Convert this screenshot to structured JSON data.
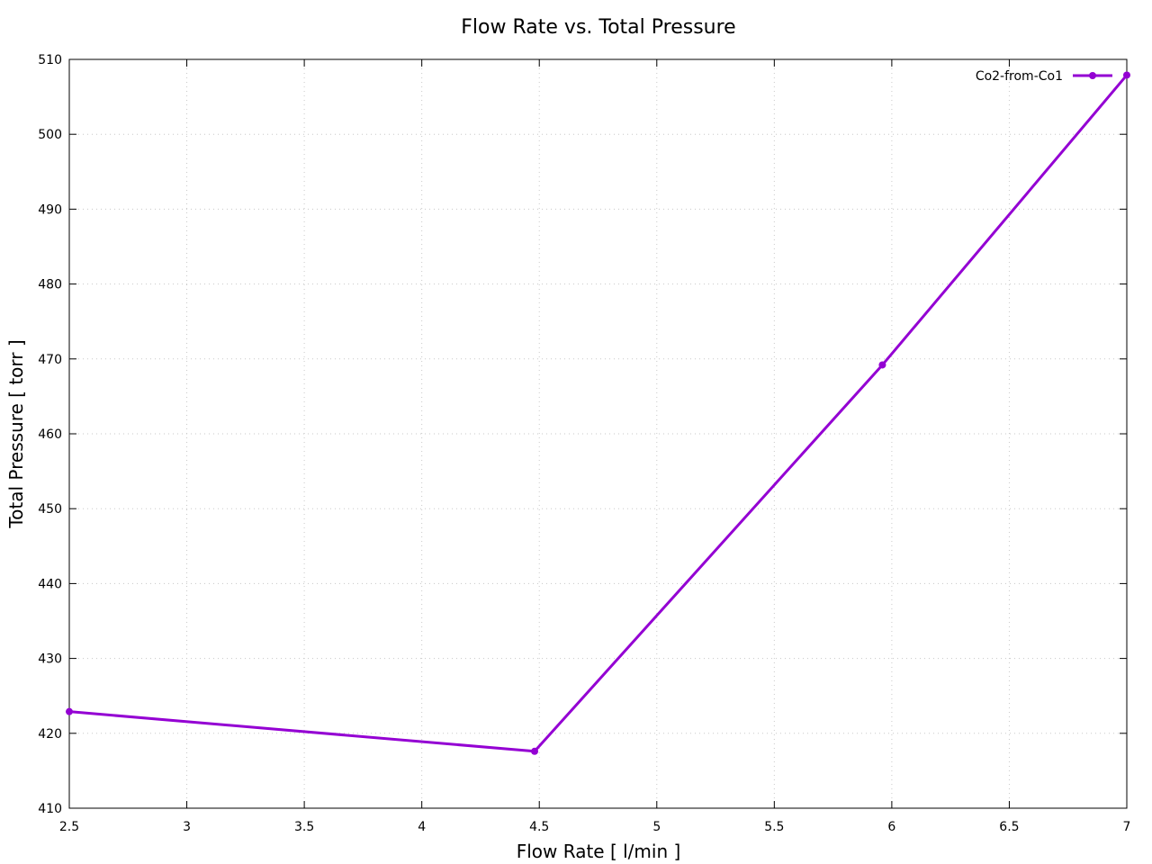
{
  "chart_data": {
    "type": "line",
    "title": "Flow Rate vs. Total Pressure",
    "xlabel": "Flow Rate [ l/min ]",
    "ylabel": "Total Pressure [ torr ]",
    "xlim": [
      2.5,
      7
    ],
    "ylim": [
      410,
      510
    ],
    "x_ticks": [
      "2.5",
      "3",
      "3.5",
      "4",
      "4.5",
      "5",
      "5.5",
      "6",
      "6.5",
      "7"
    ],
    "y_ticks": [
      "410",
      "420",
      "430",
      "440",
      "450",
      "460",
      "470",
      "480",
      "490",
      "500",
      "510"
    ],
    "grid": true,
    "legend_position": "top-right",
    "series": [
      {
        "name": "Co2-from-Co1",
        "color": "#9400d3",
        "marker": "circle",
        "points": [
          {
            "x": 2.5,
            "y": 422.9
          },
          {
            "x": 4.48,
            "y": 417.6
          },
          {
            "x": 5.96,
            "y": 469.2
          },
          {
            "x": 7.0,
            "y": 507.9
          }
        ]
      }
    ]
  }
}
